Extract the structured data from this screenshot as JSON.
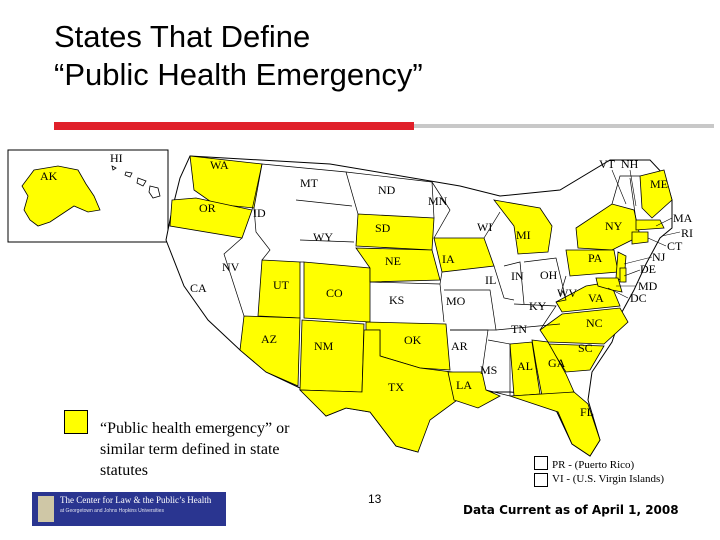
{
  "slide": {
    "title_line1": "States That Define",
    "title_line2": "“Public Health Emergency”",
    "page_number": "13",
    "data_current": "Data Current as of April 1, 2008"
  },
  "legend": {
    "text": "“Public health emergency” or similar term defined in state statutes",
    "color": "#ffff00"
  },
  "territories": {
    "pr": "PR - (Puerto Rico)",
    "vi": "VI - (U.S. Virgin Islands)"
  },
  "logo": {
    "title": "The Center for Law & the Public’s Health",
    "subtitle": "at Georgetown and Johns Hopkins Universities"
  },
  "map": {
    "highlight_color": "#ffff00",
    "other_color": "#ffffff",
    "state_labels": {
      "AK": "AK",
      "HI": "HI",
      "WA": "WA",
      "OR": "OR",
      "CA": "CA",
      "NV": "NV",
      "ID": "ID",
      "MT": "MT",
      "WY": "WY",
      "UT": "UT",
      "AZ": "AZ",
      "CO": "CO",
      "NM": "NM",
      "ND": "ND",
      "SD": "SD",
      "NE": "NE",
      "KS": "KS",
      "OK": "OK",
      "TX": "TX",
      "MN": "MN",
      "IA": "IA",
      "MO": "MO",
      "AR": "AR",
      "LA": "LA",
      "WI": "WI",
      "IL": "IL",
      "MS": "MS",
      "MI": "MI",
      "IN": "IN",
      "KY": "KY",
      "TN": "TN",
      "AL": "AL",
      "OH": "OH",
      "WV": "WV",
      "GA": "GA",
      "FL": "FL",
      "SC": "SC",
      "NC": "NC",
      "VA": "VA",
      "PA": "PA",
      "NY": "NY",
      "VT": "VT",
      "NH": "NH",
      "ME": "ME",
      "MA": "MA",
      "RI": "RI",
      "CT": "CT",
      "NJ": "NJ",
      "DE": "DE",
      "MD": "MD",
      "DC": "DC"
    }
  }
}
